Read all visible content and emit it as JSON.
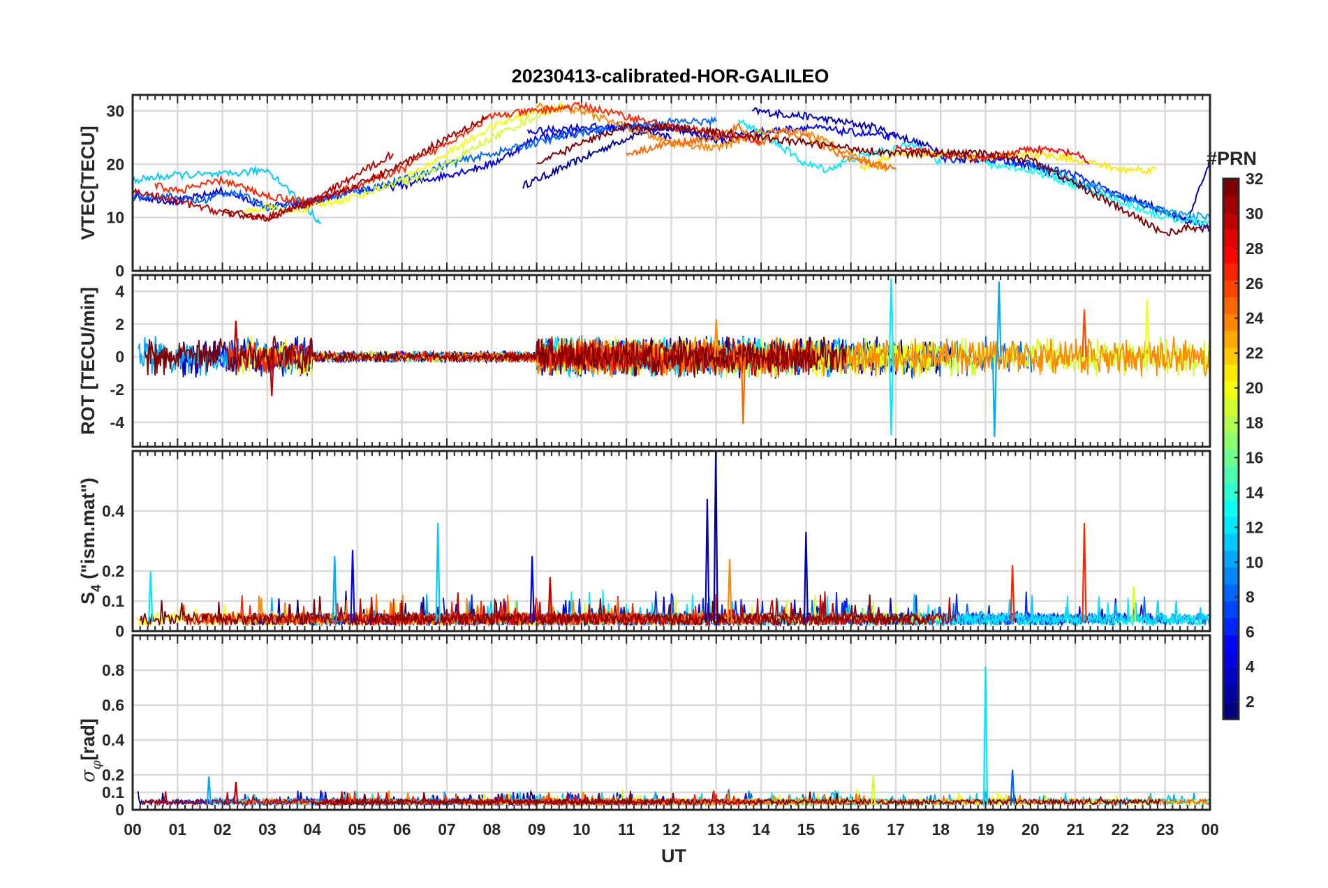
{
  "figure": {
    "title": "20230413-calibrated-HOR-GALILEO",
    "xlabel": "UT",
    "x_ticks": [
      "00",
      "01",
      "02",
      "03",
      "04",
      "05",
      "06",
      "07",
      "08",
      "09",
      "10",
      "11",
      "12",
      "13",
      "14",
      "15",
      "16",
      "17",
      "18",
      "19",
      "20",
      "21",
      "22",
      "23",
      "00"
    ]
  },
  "colorbar": {
    "label": "#PRN",
    "ticks": [
      "2",
      "4",
      "6",
      "8",
      "10",
      "12",
      "14",
      "16",
      "18",
      "20",
      "22",
      "24",
      "26",
      "28",
      "30",
      "32"
    ],
    "colormap": "jet",
    "range": [
      1,
      32
    ]
  },
  "chart_data": [
    {
      "type": "line",
      "panel": "VTEC",
      "ylabel": "VTEC[TECU]",
      "xlim": [
        0,
        24
      ],
      "ylim": [
        0,
        33
      ],
      "y_ticks": [
        "0",
        "10",
        "20",
        "30"
      ],
      "grid": true,
      "series": [
        {
          "prn": 2,
          "x": [
            8.7,
            9.5,
            10.5,
            11.3,
            12.0,
            12.8,
            13.4
          ],
          "y": [
            16,
            19,
            23,
            26,
            27,
            25,
            24
          ]
        },
        {
          "prn": 3,
          "x": [
            13.8,
            15.0,
            16.5,
            17.5,
            18.5,
            19.5,
            20.5,
            21.5,
            22.5,
            23.5,
            24.0
          ],
          "y": [
            30,
            29,
            27,
            24,
            21,
            21,
            18,
            15,
            13,
            9,
            21
          ]
        },
        {
          "prn": 4,
          "x": [
            0,
            1.0,
            2.0,
            3.0,
            4.0,
            5.0,
            6.0,
            7.0,
            8.0,
            9.0,
            10.0,
            11.0,
            12.0
          ],
          "y": [
            14,
            13,
            15,
            12,
            13,
            15,
            16,
            18,
            20,
            25,
            26,
            27,
            25
          ]
        },
        {
          "prn": 5,
          "x": [
            8.8,
            10.0,
            11.0,
            12.0,
            13.0,
            14.0,
            15.0,
            16.0,
            17.0
          ],
          "y": [
            26,
            27,
            27,
            27,
            25,
            26,
            27,
            26,
            25
          ]
        },
        {
          "prn": 6,
          "x": [
            18.0,
            19.0,
            20.0,
            21.0,
            22.0,
            23.0,
            24.0
          ],
          "y": [
            21,
            21,
            20,
            18,
            14,
            11,
            8
          ]
        },
        {
          "prn": 8,
          "x": [
            0,
            0.8,
            1.5,
            2.2,
            3.0,
            4.0,
            5.0,
            6.0,
            7.0,
            8.0,
            9.0,
            10.0,
            11.0,
            12.0,
            13.0
          ],
          "y": [
            14,
            14,
            13,
            15,
            12,
            13,
            15,
            17,
            20,
            22,
            24,
            26,
            27,
            28,
            28
          ]
        },
        {
          "prn": 10,
          "x": [
            20.0,
            21.0,
            22.0,
            23.0,
            24.0
          ],
          "y": [
            20,
            17,
            14,
            11,
            10
          ]
        },
        {
          "prn": 11,
          "x": [
            0,
            1.0,
            2.0,
            3.0,
            3.5,
            4.2
          ],
          "y": [
            17,
            18,
            18,
            19,
            15,
            9
          ]
        },
        {
          "prn": 12,
          "x": [
            13.5,
            14.0,
            14.5,
            15.0,
            15.5,
            16.0,
            16.5,
            17.0,
            17.5,
            18.0
          ],
          "y": [
            28,
            26,
            23,
            20,
            19,
            21,
            22,
            23,
            24,
            20
          ]
        },
        {
          "prn": 13,
          "x": [
            19.0,
            20.0,
            21.0,
            22.0,
            23.0,
            24.0
          ],
          "y": [
            20,
            19,
            16,
            13,
            10,
            9
          ]
        },
        {
          "prn": 19,
          "x": [
            6.0,
            7.0,
            8.0,
            9.0,
            9.6
          ],
          "y": [
            16,
            20,
            25,
            29,
            31
          ]
        },
        {
          "prn": 20,
          "x": [
            2.5,
            3.0,
            3.5,
            4.0,
            5.0,
            6.0,
            7.0,
            8.0,
            9.0,
            9.6
          ],
          "y": [
            11,
            12,
            11,
            12,
            14,
            17,
            22,
            27,
            30,
            31
          ]
        },
        {
          "prn": 21,
          "x": [
            16.2,
            17.0,
            18.0,
            19.0,
            20.0,
            21.0,
            22.0,
            22.8
          ],
          "y": [
            19,
            22,
            22,
            21,
            22,
            21,
            19,
            19
          ]
        },
        {
          "prn": 24,
          "x": [
            9.0,
            10.0,
            11.0,
            12.0,
            13.0,
            14.0,
            15.0,
            16.0,
            16.8
          ],
          "y": [
            31,
            30,
            27,
            24,
            23,
            26,
            26,
            22,
            19
          ]
        },
        {
          "prn": 25,
          "x": [
            11.0,
            12.0,
            13.0,
            13.5,
            14.0,
            14.5,
            15.0,
            16.0,
            17.0
          ],
          "y": [
            22,
            24,
            25,
            27,
            24,
            26,
            25,
            21,
            19
          ]
        },
        {
          "prn": 27,
          "x": [
            0.5,
            1.0,
            1.5,
            2.0,
            3.0,
            4.0,
            5.0,
            6.0,
            7.0,
            8.0,
            9.0,
            10.0,
            11.0,
            12.0,
            13.0,
            14.0
          ],
          "y": [
            16,
            15,
            16,
            17,
            14,
            13,
            16,
            19,
            24,
            29,
            30,
            31,
            29,
            27,
            26,
            24
          ]
        },
        {
          "prn": 28,
          "x": [
            17.0,
            18.0,
            19.0,
            20.0,
            21.0,
            21.3
          ],
          "y": [
            23,
            22,
            21,
            23,
            22,
            20
          ]
        },
        {
          "prn": 30,
          "x": [
            0,
            1.0,
            2.0,
            3.0,
            4.0,
            5.0,
            5.8
          ],
          "y": [
            15,
            13,
            11,
            10,
            13,
            18,
            22
          ]
        },
        {
          "prn": 31,
          "x": [
            2.0,
            3.0,
            4.0,
            5.0,
            6.0,
            7.0,
            7.9
          ],
          "y": [
            11,
            10,
            13,
            16,
            20,
            25,
            29
          ]
        },
        {
          "prn": 32,
          "x": [
            9.0,
            10.0,
            11.0,
            12.0,
            13.0,
            14.0,
            15.0,
            16.0,
            17.0,
            18.0,
            19.0,
            20.0,
            23.0,
            23.5,
            24.0
          ],
          "y": [
            20,
            24,
            27,
            27,
            26,
            25,
            24,
            23,
            22,
            22,
            22,
            21,
            7,
            8,
            8
          ]
        }
      ]
    },
    {
      "type": "line",
      "panel": "ROT",
      "ylabel": "ROT [TECU/min]",
      "xlim": [
        0,
        24
      ],
      "ylim": [
        -5.5,
        5
      ],
      "y_ticks": [
        "-4",
        "-2",
        "0",
        "2",
        "4"
      ],
      "grid": true,
      "note": "Dense noise around 0; extreme spikes listed",
      "spikes": [
        {
          "prn": 12,
          "x": 16.9,
          "y": 4.8
        },
        {
          "prn": 12,
          "x": 16.9,
          "y": -4.8
        },
        {
          "prn": 10,
          "x": 19.3,
          "y": 4.6
        },
        {
          "prn": 10,
          "x": 19.2,
          "y": -4.9
        },
        {
          "prn": 25,
          "x": 13.6,
          "y": -4.1
        },
        {
          "prn": 30,
          "x": 3.1,
          "y": -2.4
        },
        {
          "prn": 20,
          "x": 22.6,
          "y": 3.5
        },
        {
          "prn": 26,
          "x": 21.2,
          "y": 2.9
        },
        {
          "prn": 24,
          "x": 13.0,
          "y": 2.3
        },
        {
          "prn": 30,
          "x": 2.3,
          "y": 2.2
        }
      ]
    },
    {
      "type": "line",
      "panel": "S4",
      "ylabel": "S4 (\"ism.mat\")",
      "xlim": [
        0,
        24
      ],
      "ylim": [
        0,
        0.6
      ],
      "y_ticks": [
        "0",
        "0.1",
        "0.2",
        "0.4"
      ],
      "grid": true,
      "spikes": [
        {
          "prn": 2,
          "x": 12.99,
          "y": 0.6
        },
        {
          "prn": 3,
          "x": 12.8,
          "y": 0.44
        },
        {
          "prn": 11,
          "x": 6.8,
          "y": 0.36
        },
        {
          "prn": 27,
          "x": 21.2,
          "y": 0.36
        },
        {
          "prn": 3,
          "x": 15.0,
          "y": 0.33
        },
        {
          "prn": 5,
          "x": 4.9,
          "y": 0.27
        },
        {
          "prn": 10,
          "x": 4.5,
          "y": 0.25
        },
        {
          "prn": 4,
          "x": 8.9,
          "y": 0.25
        },
        {
          "prn": 24,
          "x": 13.3,
          "y": 0.24
        },
        {
          "prn": 27,
          "x": 19.6,
          "y": 0.22
        },
        {
          "prn": 12,
          "x": 0.4,
          "y": 0.2
        },
        {
          "prn": 30,
          "x": 9.3,
          "y": 0.18
        },
        {
          "prn": 19,
          "x": 22.3,
          "y": 0.15
        }
      ]
    },
    {
      "type": "line",
      "panel": "sigma_phi",
      "ylabel": "σφ[rad]",
      "xlim": [
        0,
        24
      ],
      "ylim": [
        0,
        1.0
      ],
      "y_ticks": [
        "0",
        "0.1",
        "0.2",
        "0.4",
        "0.6",
        "0.8"
      ],
      "grid": true,
      "spikes": [
        {
          "prn": 12,
          "x": 19.0,
          "y": 0.82
        },
        {
          "prn": 8,
          "x": 19.6,
          "y": 0.23
        },
        {
          "prn": 19,
          "x": 16.5,
          "y": 0.2
        },
        {
          "prn": 10,
          "x": 1.7,
          "y": 0.19
        },
        {
          "prn": 30,
          "x": 2.3,
          "y": 0.16
        }
      ]
    }
  ]
}
